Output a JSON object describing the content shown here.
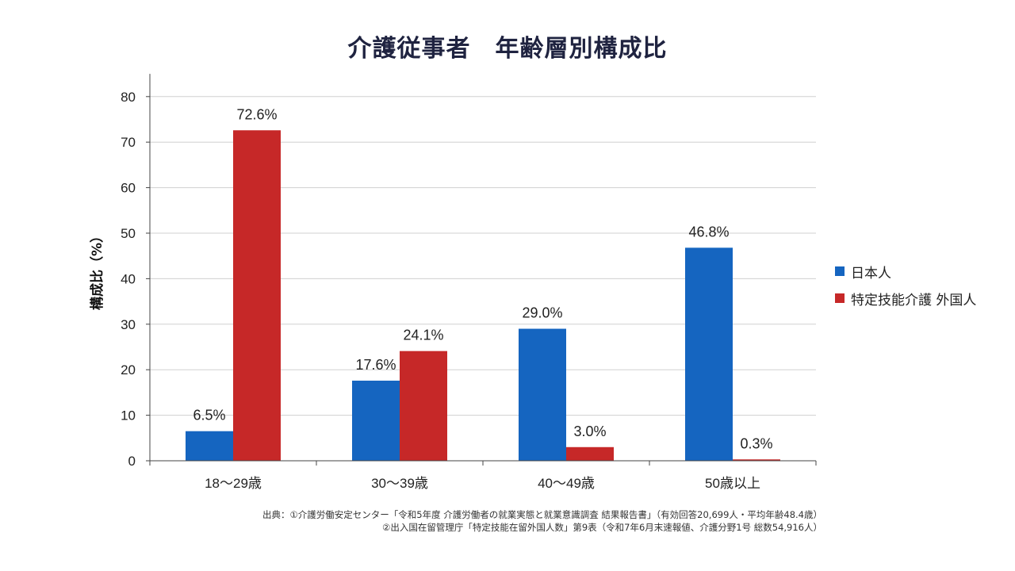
{
  "chart_data": {
    "type": "bar",
    "title": "介護従事者　年齢層別構成比",
    "ylabel": "構成比（%）",
    "xlabel": "",
    "ylim": [
      0,
      85
    ],
    "yticks": [
      0,
      10,
      20,
      30,
      40,
      50,
      60,
      70,
      80
    ],
    "grid": true,
    "legend_position": "right",
    "categories": [
      "18〜29歳",
      "30〜39歳",
      "40〜49歳",
      "50歳以上"
    ],
    "series": [
      {
        "name": "日本人",
        "color": "#1565c0",
        "values": [
          6.5,
          17.6,
          29.0,
          46.8
        ],
        "labels": [
          "6.5%",
          "17.6%",
          "29.0%",
          "46.8%"
        ]
      },
      {
        "name": "特定技能介護 外国人",
        "color": "#c62828",
        "values": [
          72.6,
          24.1,
          3.0,
          0.3
        ],
        "labels": [
          "72.6%",
          "24.1%",
          "3.0%",
          "0.3%"
        ]
      }
    ]
  },
  "source": {
    "line1": "出典：①介護労働安定センター「令和5年度 介護労働者の就業実態と就業意識調査 結果報告書」（有効回答20,699人・平均年齢48.4歳）",
    "line2": "②出入国在留管理庁「特定技能在留外国人数」第9表（令和7年6月末速報値、介護分野1号 総数54,916人）"
  }
}
